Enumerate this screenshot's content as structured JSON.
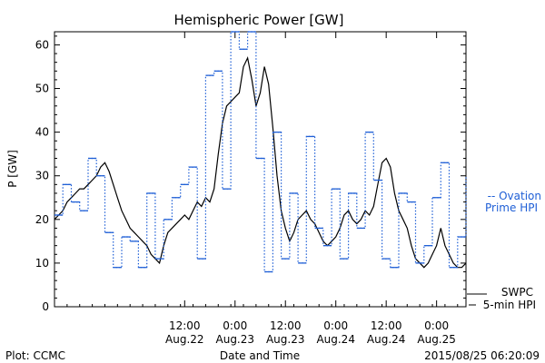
{
  "chart_data": {
    "type": "line",
    "title": "Hemispheric Power [GW]",
    "ylabel": "P [GW]",
    "xlabel": "Date and Time",
    "ylim": [
      0,
      63
    ],
    "yticks": [
      0,
      10,
      20,
      30,
      40,
      50,
      60
    ],
    "xlim": [
      "2015-08-21T05:00",
      "2015-08-25T07:00"
    ],
    "xticks": [
      {
        "t": "2015-08-22T12:00",
        "line1": "12:00",
        "line2": "Aug.22"
      },
      {
        "t": "2015-08-23T00:00",
        "line1": "0:00",
        "line2": "Aug.23"
      },
      {
        "t": "2015-08-23T12:00",
        "line1": "12:00",
        "line2": "Aug.23"
      },
      {
        "t": "2015-08-24T00:00",
        "line1": "0:00",
        "line2": "Aug.24"
      },
      {
        "t": "2015-08-24T12:00",
        "line1": "12:00",
        "line2": "Aug.24"
      },
      {
        "t": "2015-08-25T00:00",
        "line1": "0:00",
        "line2": "Aug.25"
      }
    ],
    "series": [
      {
        "name": "SWPC 5-min HPI",
        "color": "#000000",
        "style": "solid",
        "points": [
          [
            "2015-08-21T05:00",
            20
          ],
          [
            "2015-08-21T06:00",
            21
          ],
          [
            "2015-08-21T07:00",
            22
          ],
          [
            "2015-08-21T08:00",
            24
          ],
          [
            "2015-08-21T09:00",
            25
          ],
          [
            "2015-08-21T10:00",
            26
          ],
          [
            "2015-08-21T11:00",
            27
          ],
          [
            "2015-08-21T12:00",
            27
          ],
          [
            "2015-08-21T13:00",
            28
          ],
          [
            "2015-08-21T14:00",
            29
          ],
          [
            "2015-08-21T15:00",
            30
          ],
          [
            "2015-08-21T16:00",
            32
          ],
          [
            "2015-08-21T17:00",
            33
          ],
          [
            "2015-08-21T18:00",
            31
          ],
          [
            "2015-08-21T19:00",
            28
          ],
          [
            "2015-08-21T20:00",
            25
          ],
          [
            "2015-08-21T21:00",
            22
          ],
          [
            "2015-08-21T22:00",
            20
          ],
          [
            "2015-08-21T23:00",
            18
          ],
          [
            "2015-08-22T00:00",
            17
          ],
          [
            "2015-08-22T01:00",
            16
          ],
          [
            "2015-08-22T02:00",
            15
          ],
          [
            "2015-08-22T03:00",
            14
          ],
          [
            "2015-08-22T04:00",
            12
          ],
          [
            "2015-08-22T05:00",
            11
          ],
          [
            "2015-08-22T06:00",
            10
          ],
          [
            "2015-08-22T07:00",
            14
          ],
          [
            "2015-08-22T08:00",
            17
          ],
          [
            "2015-08-22T09:00",
            18
          ],
          [
            "2015-08-22T10:00",
            19
          ],
          [
            "2015-08-22T11:00",
            20
          ],
          [
            "2015-08-22T12:00",
            21
          ],
          [
            "2015-08-22T13:00",
            20
          ],
          [
            "2015-08-22T14:00",
            22
          ],
          [
            "2015-08-22T15:00",
            24
          ],
          [
            "2015-08-22T16:00",
            23
          ],
          [
            "2015-08-22T17:00",
            25
          ],
          [
            "2015-08-22T18:00",
            24
          ],
          [
            "2015-08-22T19:00",
            27
          ],
          [
            "2015-08-22T20:00",
            35
          ],
          [
            "2015-08-22T21:00",
            42
          ],
          [
            "2015-08-22T22:00",
            46
          ],
          [
            "2015-08-22T23:00",
            47
          ],
          [
            "2015-08-23T00:00",
            48
          ],
          [
            "2015-08-23T01:00",
            49
          ],
          [
            "2015-08-23T02:00",
            55
          ],
          [
            "2015-08-23T03:00",
            57
          ],
          [
            "2015-08-23T04:00",
            52
          ],
          [
            "2015-08-23T05:00",
            46
          ],
          [
            "2015-08-23T06:00",
            49
          ],
          [
            "2015-08-23T07:00",
            55
          ],
          [
            "2015-08-23T08:00",
            51
          ],
          [
            "2015-08-23T09:00",
            41
          ],
          [
            "2015-08-23T10:00",
            30
          ],
          [
            "2015-08-23T11:00",
            22
          ],
          [
            "2015-08-23T12:00",
            18
          ],
          [
            "2015-08-23T13:00",
            15
          ],
          [
            "2015-08-23T14:00",
            17
          ],
          [
            "2015-08-23T15:00",
            20
          ],
          [
            "2015-08-23T16:00",
            21
          ],
          [
            "2015-08-23T17:00",
            22
          ],
          [
            "2015-08-23T18:00",
            20
          ],
          [
            "2015-08-23T19:00",
            19
          ],
          [
            "2015-08-23T20:00",
            17
          ],
          [
            "2015-08-23T21:00",
            15
          ],
          [
            "2015-08-23T22:00",
            14
          ],
          [
            "2015-08-23T23:00",
            15
          ],
          [
            "2015-08-24T00:00",
            16
          ],
          [
            "2015-08-24T01:00",
            18
          ],
          [
            "2015-08-24T02:00",
            21
          ],
          [
            "2015-08-24T03:00",
            22
          ],
          [
            "2015-08-24T04:00",
            20
          ],
          [
            "2015-08-24T05:00",
            19
          ],
          [
            "2015-08-24T06:00",
            20
          ],
          [
            "2015-08-24T07:00",
            22
          ],
          [
            "2015-08-24T08:00",
            21
          ],
          [
            "2015-08-24T09:00",
            23
          ],
          [
            "2015-08-24T10:00",
            28
          ],
          [
            "2015-08-24T11:00",
            33
          ],
          [
            "2015-08-24T12:00",
            34
          ],
          [
            "2015-08-24T13:00",
            32
          ],
          [
            "2015-08-24T14:00",
            26
          ],
          [
            "2015-08-24T15:00",
            22
          ],
          [
            "2015-08-24T16:00",
            20
          ],
          [
            "2015-08-24T17:00",
            18
          ],
          [
            "2015-08-24T18:00",
            14
          ],
          [
            "2015-08-24T19:00",
            11
          ],
          [
            "2015-08-24T20:00",
            10
          ],
          [
            "2015-08-24T21:00",
            9
          ],
          [
            "2015-08-24T22:00",
            10
          ],
          [
            "2015-08-24T23:00",
            12
          ],
          [
            "2015-08-25T00:00",
            14
          ],
          [
            "2015-08-25T01:00",
            18
          ],
          [
            "2015-08-25T02:00",
            14
          ],
          [
            "2015-08-25T03:00",
            12
          ],
          [
            "2015-08-25T04:00",
            10
          ],
          [
            "2015-08-25T05:00",
            9
          ],
          [
            "2015-08-25T06:00",
            9
          ],
          [
            "2015-08-25T07:00",
            10
          ]
        ]
      },
      {
        "name": "Ovation Prime HPI",
        "color": "#1f5fd6",
        "style": "dotted-step",
        "points": [
          [
            "2015-08-21T05:00",
            21
          ],
          [
            "2015-08-21T07:00",
            28
          ],
          [
            "2015-08-21T09:00",
            24
          ],
          [
            "2015-08-21T11:00",
            22
          ],
          [
            "2015-08-21T13:00",
            34
          ],
          [
            "2015-08-21T15:00",
            30
          ],
          [
            "2015-08-21T17:00",
            17
          ],
          [
            "2015-08-21T19:00",
            9
          ],
          [
            "2015-08-21T21:00",
            16
          ],
          [
            "2015-08-21T23:00",
            15
          ],
          [
            "2015-08-22T01:00",
            9
          ],
          [
            "2015-08-22T03:00",
            26
          ],
          [
            "2015-08-22T05:00",
            11
          ],
          [
            "2015-08-22T07:00",
            20
          ],
          [
            "2015-08-22T09:00",
            25
          ],
          [
            "2015-08-22T11:00",
            28
          ],
          [
            "2015-08-22T13:00",
            32
          ],
          [
            "2015-08-22T15:00",
            11
          ],
          [
            "2015-08-22T17:00",
            53
          ],
          [
            "2015-08-22T19:00",
            54
          ],
          [
            "2015-08-22T21:00",
            27
          ],
          [
            "2015-08-22T23:00",
            63
          ],
          [
            "2015-08-23T01:00",
            59
          ],
          [
            "2015-08-23T03:00",
            63
          ],
          [
            "2015-08-23T05:00",
            34
          ],
          [
            "2015-08-23T07:00",
            8
          ],
          [
            "2015-08-23T09:00",
            40
          ],
          [
            "2015-08-23T11:00",
            11
          ],
          [
            "2015-08-23T13:00",
            26
          ],
          [
            "2015-08-23T15:00",
            10
          ],
          [
            "2015-08-23T17:00",
            39
          ],
          [
            "2015-08-23T19:00",
            18
          ],
          [
            "2015-08-23T21:00",
            14
          ],
          [
            "2015-08-23T23:00",
            27
          ],
          [
            "2015-08-24T01:00",
            11
          ],
          [
            "2015-08-24T03:00",
            26
          ],
          [
            "2015-08-24T05:00",
            18
          ],
          [
            "2015-08-24T07:00",
            40
          ],
          [
            "2015-08-24T09:00",
            29
          ],
          [
            "2015-08-24T11:00",
            11
          ],
          [
            "2015-08-24T13:00",
            9
          ],
          [
            "2015-08-24T15:00",
            26
          ],
          [
            "2015-08-24T17:00",
            24
          ],
          [
            "2015-08-24T19:00",
            10
          ],
          [
            "2015-08-24T21:00",
            14
          ],
          [
            "2015-08-24T23:00",
            25
          ],
          [
            "2015-08-25T01:00",
            33
          ],
          [
            "2015-08-25T03:00",
            9
          ],
          [
            "2015-08-25T05:00",
            16
          ],
          [
            "2015-08-25T07:00",
            30
          ]
        ]
      }
    ],
    "legend": {
      "ovation_line1": "-- Ovation",
      "ovation_line2": "Prime HPI",
      "swpc_line1": "SWPC",
      "swpc_line2": "5-min HPI"
    }
  },
  "footer": {
    "plot_credit": "Plot: CCMC",
    "timestamp": "2015/08/25 06:20:09"
  }
}
